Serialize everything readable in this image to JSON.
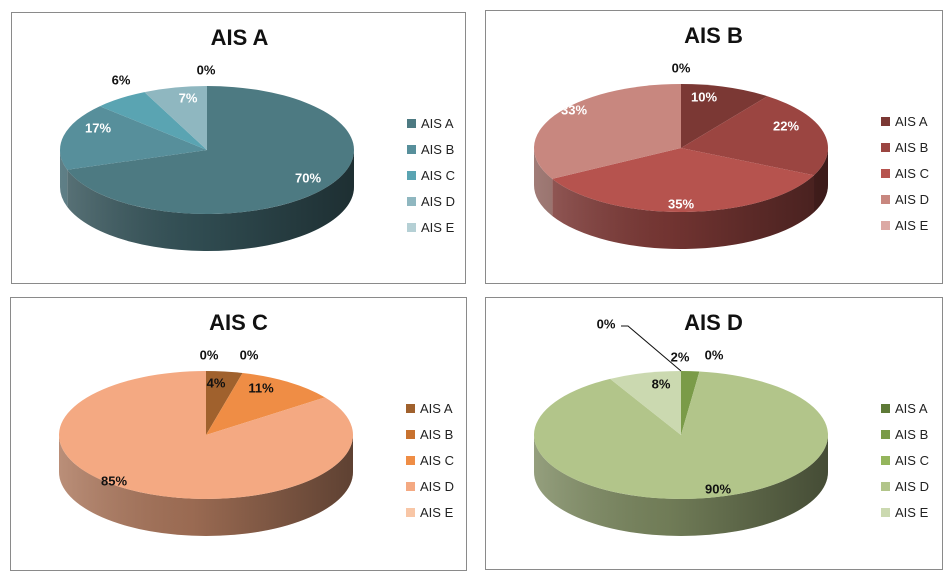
{
  "chart_data": [
    {
      "type": "pie",
      "title": "AIS A",
      "categories": [
        "AIS A",
        "AIS B",
        "AIS C",
        "AIS D",
        "AIS E"
      ],
      "values": [
        70,
        17,
        6,
        7,
        0
      ],
      "labels": [
        "70%",
        "17%",
        "6%",
        "7%",
        "0%"
      ],
      "colors": [
        "#4d7a82",
        "#578f9b",
        "#5aa4b2",
        "#8fb7c0",
        "#b5d0d5"
      ],
      "label_color": "#ffffff",
      "legend": "right"
    },
    {
      "type": "pie",
      "title": "AIS B",
      "categories": [
        "AIS A",
        "AIS B",
        "AIS C",
        "AIS D",
        "AIS E"
      ],
      "values": [
        10,
        22,
        35,
        33,
        0
      ],
      "labels": [
        "10%",
        "22%",
        "35%",
        "33%",
        "0%"
      ],
      "colors": [
        "#7b3834",
        "#9b4541",
        "#b6534e",
        "#c8877f",
        "#dca9a4"
      ],
      "label_color": "#ffffff",
      "legend": "right"
    },
    {
      "type": "pie",
      "title": "AIS C",
      "categories": [
        "AIS A",
        "AIS B",
        "AIS C",
        "AIS D",
        "AIS E"
      ],
      "values": [
        4,
        0,
        11,
        85,
        0
      ],
      "labels": [
        "4%",
        "0%",
        "11%",
        "85%",
        "0%"
      ],
      "colors": [
        "#a0612d",
        "#c8722f",
        "#ef8d45",
        "#f4a982",
        "#f8c6a6"
      ],
      "label_color": "#111111",
      "legend": "right"
    },
    {
      "type": "pie",
      "title": "AIS D",
      "categories": [
        "AIS A",
        "AIS B",
        "AIS C",
        "AIS D",
        "AIS E"
      ],
      "values": [
        0,
        2,
        0,
        90,
        8
      ],
      "labels": [
        "0%",
        "2%",
        "0%",
        "90%",
        "8%"
      ],
      "colors": [
        "#5e7a37",
        "#7a9b48",
        "#94b55c",
        "#b2c58a",
        "#cbd9b0"
      ],
      "label_color": "#111111",
      "legend": "right"
    }
  ]
}
